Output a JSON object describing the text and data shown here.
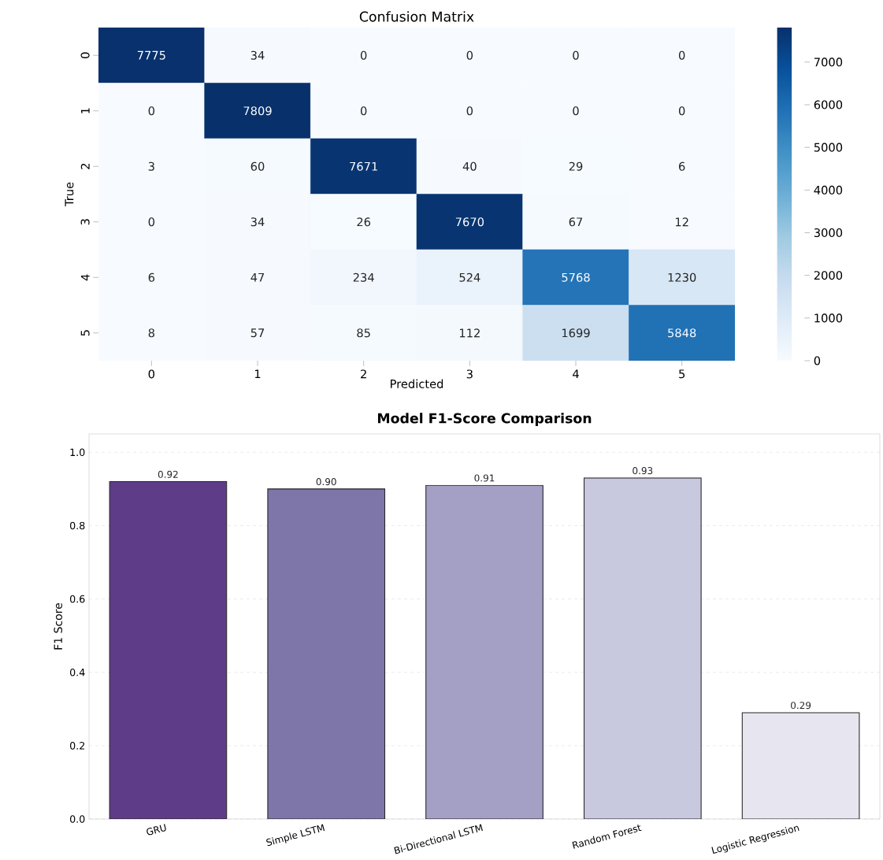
{
  "chart_data": [
    {
      "type": "heatmap",
      "title": "Confusion Matrix",
      "xlabel": "Predicted",
      "ylabel": "True",
      "categories": [
        "0",
        "1",
        "2",
        "3",
        "4",
        "5"
      ],
      "y_categories": [
        "0",
        "1",
        "2",
        "3",
        "4",
        "5"
      ],
      "cells": [
        [
          7775,
          34,
          0,
          0,
          0,
          0
        ],
        [
          0,
          7809,
          0,
          0,
          0,
          0
        ],
        [
          3,
          60,
          7671,
          40,
          29,
          6
        ],
        [
          0,
          34,
          26,
          7670,
          67,
          12
        ],
        [
          6,
          47,
          234,
          524,
          5768,
          1230
        ],
        [
          8,
          57,
          85,
          112,
          1699,
          5848
        ]
      ],
      "clim": [
        0,
        7809
      ],
      "cticks": [
        0,
        1000,
        2000,
        3000,
        4000,
        5000,
        6000,
        7000
      ],
      "data_labels": true
    },
    {
      "type": "bar",
      "title": "Model F1-Score Comparison",
      "ylabel": "F1 Score",
      "categories": [
        "GRU",
        "Simple LSTM",
        "Bi-Directional LSTM",
        "Random Forest",
        "Logistic Regression"
      ],
      "values": [
        0.92,
        0.9,
        0.91,
        0.93,
        0.29
      ],
      "value_labels": [
        "0.92",
        "0.90",
        "0.91",
        "0.93",
        "0.29"
      ],
      "colors": [
        "#5e3c87",
        "#7e76a8",
        "#a39fc5",
        "#c8c8de",
        "#e7e5f0"
      ],
      "ylim": [
        0,
        1.05
      ],
      "yticks": [
        {
          "value": 0,
          "label": "0.0"
        },
        0.2,
        0.4,
        0.6,
        0.8,
        {
          "value": 1,
          "label": "1.0"
        }
      ],
      "grid": "y"
    }
  ]
}
